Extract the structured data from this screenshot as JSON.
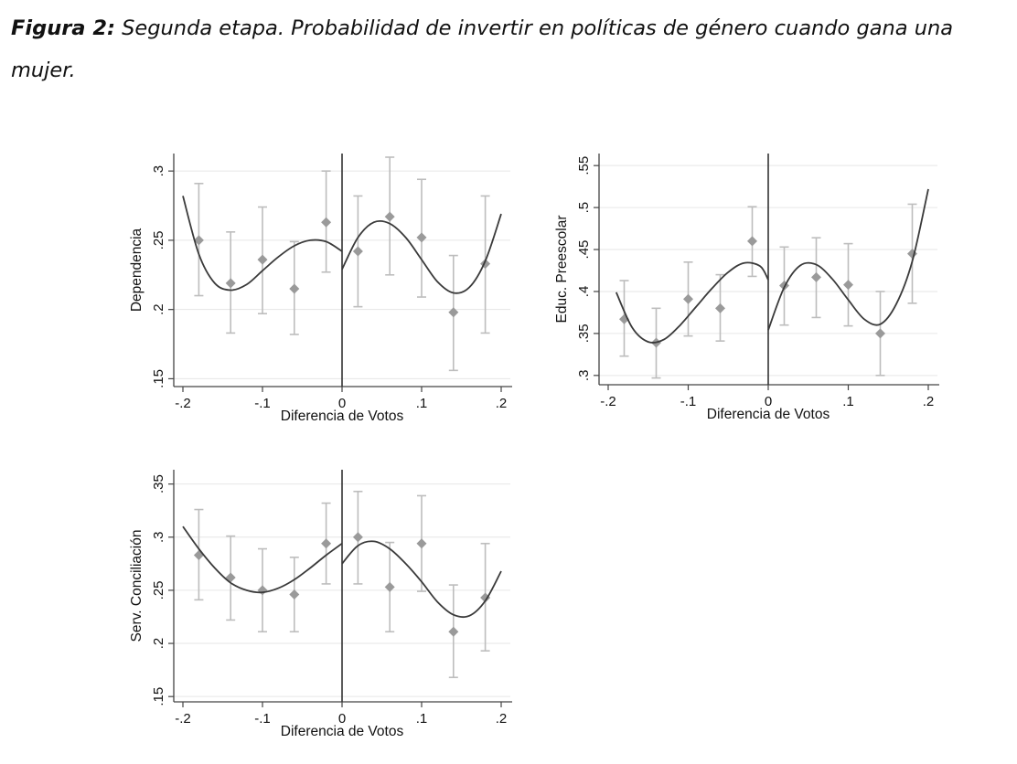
{
  "caption": {
    "label": "Figura 2:",
    "text": "Segunda etapa. Probabilidad de invertir en políticas de género cuando gana una mujer."
  },
  "colors": {
    "grid": "#e6e6e6",
    "axis": "#444444",
    "points": "#9a9a9a",
    "errorbars": "#bdbdbd",
    "curve": "#3a3a3a",
    "cutoff": "#333333"
  },
  "chart_data": [
    {
      "type": "scatter",
      "id": "dependencia",
      "xlabel": "Diferencia de Votos",
      "ylabel": "Dependencia",
      "xlim": [
        -0.2,
        0.2
      ],
      "ylim": [
        0.145,
        0.31
      ],
      "xticks": [
        -0.2,
        -0.1,
        0,
        0.1,
        0.2
      ],
      "xtick_labels": [
        "-.2",
        "-.1",
        "0",
        ".1",
        ".2"
      ],
      "yticks": [
        0.15,
        0.2,
        0.25,
        0.3
      ],
      "ytick_labels": [
        ".15",
        ".2",
        ".25",
        ".3"
      ],
      "cutoff": 0,
      "points": [
        {
          "x": -0.18,
          "y": 0.25,
          "lo": 0.21,
          "hi": 0.291
        },
        {
          "x": -0.14,
          "y": 0.219,
          "lo": 0.183,
          "hi": 0.256
        },
        {
          "x": -0.1,
          "y": 0.236,
          "lo": 0.197,
          "hi": 0.274
        },
        {
          "x": -0.06,
          "y": 0.215,
          "lo": 0.182,
          "hi": 0.249
        },
        {
          "x": -0.02,
          "y": 0.263,
          "lo": 0.227,
          "hi": 0.3
        },
        {
          "x": 0.02,
          "y": 0.242,
          "lo": 0.202,
          "hi": 0.282
        },
        {
          "x": 0.06,
          "y": 0.267,
          "lo": 0.225,
          "hi": 0.31
        },
        {
          "x": 0.1,
          "y": 0.252,
          "lo": 0.209,
          "hi": 0.294
        },
        {
          "x": 0.14,
          "y": 0.198,
          "lo": 0.156,
          "hi": 0.239
        },
        {
          "x": 0.18,
          "y": 0.233,
          "lo": 0.183,
          "hi": 0.282
        }
      ],
      "fit_left": [
        [
          -0.2,
          0.282
        ],
        [
          -0.18,
          0.24
        ],
        [
          -0.16,
          0.219
        ],
        [
          -0.14,
          0.214
        ],
        [
          -0.12,
          0.218
        ],
        [
          -0.1,
          0.228
        ],
        [
          -0.08,
          0.238
        ],
        [
          -0.06,
          0.246
        ],
        [
          -0.04,
          0.25
        ],
        [
          -0.02,
          0.249
        ],
        [
          0,
          0.242
        ]
      ],
      "fit_right": [
        [
          0,
          0.229
        ],
        [
          0.02,
          0.252
        ],
        [
          0.04,
          0.263
        ],
        [
          0.06,
          0.262
        ],
        [
          0.08,
          0.252
        ],
        [
          0.1,
          0.236
        ],
        [
          0.12,
          0.22
        ],
        [
          0.14,
          0.212
        ],
        [
          0.16,
          0.216
        ],
        [
          0.18,
          0.235
        ],
        [
          0.2,
          0.269
        ]
      ]
    },
    {
      "type": "scatter",
      "id": "preescolar",
      "xlabel": "Diferencia de Votos",
      "ylabel": "Educ. Preescolar",
      "xlim": [
        -0.2,
        0.2
      ],
      "ylim": [
        0.29,
        0.56
      ],
      "xticks": [
        -0.2,
        -0.1,
        0,
        0.1,
        0.2
      ],
      "xtick_labels": [
        "-.2",
        "-.1",
        "0",
        ".1",
        ".2"
      ],
      "yticks": [
        0.3,
        0.35,
        0.4,
        0.45,
        0.5,
        0.55
      ],
      "ytick_labels": [
        ".3",
        ".35",
        ".4",
        ".45",
        ".5",
        ".55"
      ],
      "cutoff": 0,
      "points": [
        {
          "x": -0.18,
          "y": 0.367,
          "lo": 0.323,
          "hi": 0.413
        },
        {
          "x": -0.14,
          "y": 0.339,
          "lo": 0.297,
          "hi": 0.38
        },
        {
          "x": -0.1,
          "y": 0.391,
          "lo": 0.347,
          "hi": 0.435
        },
        {
          "x": -0.06,
          "y": 0.38,
          "lo": 0.341,
          "hi": 0.42
        },
        {
          "x": -0.02,
          "y": 0.46,
          "lo": 0.418,
          "hi": 0.501
        },
        {
          "x": 0.02,
          "y": 0.407,
          "lo": 0.36,
          "hi": 0.453
        },
        {
          "x": 0.06,
          "y": 0.417,
          "lo": 0.369,
          "hi": 0.464
        },
        {
          "x": 0.1,
          "y": 0.408,
          "lo": 0.359,
          "hi": 0.457
        },
        {
          "x": 0.14,
          "y": 0.35,
          "lo": 0.3,
          "hi": 0.4
        },
        {
          "x": 0.18,
          "y": 0.445,
          "lo": 0.386,
          "hi": 0.504
        }
      ],
      "fit_left": [
        [
          -0.19,
          0.399
        ],
        [
          -0.17,
          0.357
        ],
        [
          -0.15,
          0.34
        ],
        [
          -0.13,
          0.343
        ],
        [
          -0.11,
          0.36
        ],
        [
          -0.09,
          0.382
        ],
        [
          -0.07,
          0.404
        ],
        [
          -0.05,
          0.423
        ],
        [
          -0.03,
          0.434
        ],
        [
          -0.01,
          0.43
        ],
        [
          0,
          0.414
        ]
      ],
      "fit_right": [
        [
          0,
          0.354
        ],
        [
          0.02,
          0.405
        ],
        [
          0.04,
          0.431
        ],
        [
          0.06,
          0.432
        ],
        [
          0.08,
          0.415
        ],
        [
          0.1,
          0.39
        ],
        [
          0.12,
          0.367
        ],
        [
          0.14,
          0.361
        ],
        [
          0.16,
          0.385
        ],
        [
          0.18,
          0.436
        ],
        [
          0.2,
          0.522
        ]
      ]
    },
    {
      "type": "scatter",
      "id": "conciliacion",
      "xlabel": "Diferencia de Votos",
      "ylabel": "Serv. Conciliación",
      "xlim": [
        -0.2,
        0.2
      ],
      "ylim": [
        0.145,
        0.36
      ],
      "xticks": [
        -0.2,
        -0.1,
        0,
        0.1,
        0.2
      ],
      "xtick_labels": [
        "-.2",
        "-.1",
        "0",
        ".1",
        ".2"
      ],
      "yticks": [
        0.15,
        0.2,
        0.25,
        0.3,
        0.35
      ],
      "ytick_labels": [
        ".15",
        ".2",
        ".25",
        ".3",
        ".35"
      ],
      "cutoff": 0,
      "points": [
        {
          "x": -0.18,
          "y": 0.283,
          "lo": 0.241,
          "hi": 0.326
        },
        {
          "x": -0.14,
          "y": 0.262,
          "lo": 0.222,
          "hi": 0.301
        },
        {
          "x": -0.1,
          "y": 0.25,
          "lo": 0.211,
          "hi": 0.289
        },
        {
          "x": -0.06,
          "y": 0.246,
          "lo": 0.211,
          "hi": 0.281
        },
        {
          "x": -0.02,
          "y": 0.294,
          "lo": 0.256,
          "hi": 0.332
        },
        {
          "x": 0.02,
          "y": 0.3,
          "lo": 0.256,
          "hi": 0.343
        },
        {
          "x": 0.06,
          "y": 0.253,
          "lo": 0.211,
          "hi": 0.295
        },
        {
          "x": 0.1,
          "y": 0.294,
          "lo": 0.249,
          "hi": 0.339
        },
        {
          "x": 0.14,
          "y": 0.211,
          "lo": 0.168,
          "hi": 0.255
        },
        {
          "x": 0.18,
          "y": 0.243,
          "lo": 0.193,
          "hi": 0.294
        }
      ],
      "fit_left": [
        [
          -0.2,
          0.31
        ],
        [
          -0.18,
          0.289
        ],
        [
          -0.16,
          0.271
        ],
        [
          -0.14,
          0.257
        ],
        [
          -0.12,
          0.25
        ],
        [
          -0.1,
          0.248
        ],
        [
          -0.08,
          0.252
        ],
        [
          -0.06,
          0.26
        ],
        [
          -0.04,
          0.271
        ],
        [
          -0.02,
          0.283
        ],
        [
          0,
          0.294
        ]
      ],
      "fit_right": [
        [
          0,
          0.275
        ],
        [
          0.02,
          0.292
        ],
        [
          0.04,
          0.296
        ],
        [
          0.06,
          0.289
        ],
        [
          0.08,
          0.275
        ],
        [
          0.1,
          0.258
        ],
        [
          0.12,
          0.239
        ],
        [
          0.14,
          0.227
        ],
        [
          0.16,
          0.226
        ],
        [
          0.18,
          0.24
        ],
        [
          0.2,
          0.268
        ]
      ]
    }
  ]
}
